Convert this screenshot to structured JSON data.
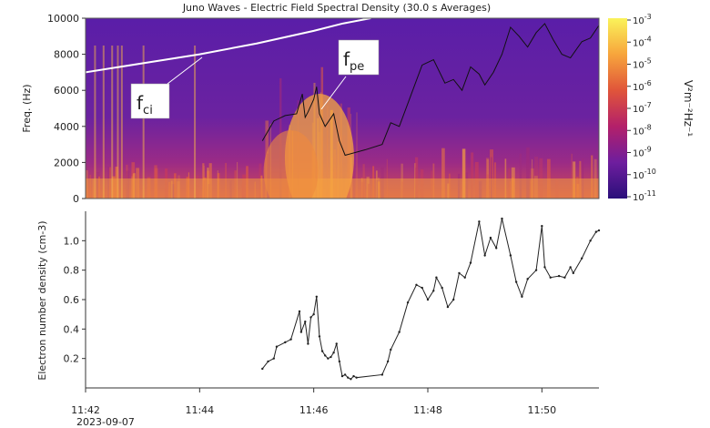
{
  "chart_data": [
    {
      "type": "heatmap",
      "title": "Juno Waves - Electric Field Spectral Density (30.0 s Averages)",
      "ylabel": "Freq. (Hz)",
      "ylim": [
        0,
        10000
      ],
      "yticks": [
        "0",
        "2000",
        "4000",
        "6000",
        "8000",
        "10000"
      ],
      "xlim_minutes": [
        0,
        9
      ],
      "colorbar": {
        "label": "V²m⁻²Hz⁻¹",
        "ticks": [
          "10-3",
          "10-4",
          "10-5",
          "10-6",
          "10-7",
          "10-8",
          "10-9",
          "10-10",
          "10-11"
        ],
        "scale": "log",
        "colors": [
          "#faf35a",
          "#f7a53c",
          "#e0553a",
          "#b3206a",
          "#6e1e9e",
          "#2a0f7a"
        ]
      },
      "annotations": [
        {
          "label": "f",
          "sub": "ci"
        },
        {
          "label": "f",
          "sub": "pe"
        }
      ],
      "series": [
        {
          "type": "line",
          "color": "#ffffff",
          "x": [
            0.0,
            1.0,
            2.0,
            3.0,
            4.0,
            4.5,
            5.0
          ],
          "y": [
            7000,
            7500,
            8000,
            8600,
            9300,
            9700,
            10000
          ]
        },
        {
          "type": "line",
          "color": "#111111",
          "x": [
            3.1,
            3.3,
            3.5,
            3.7,
            3.8,
            3.85,
            3.9,
            4.0,
            4.05,
            4.1,
            4.2,
            4.35,
            4.45,
            4.55,
            4.9,
            5.2,
            5.35,
            5.5,
            5.7,
            5.9,
            6.1,
            6.3,
            6.45,
            6.6,
            6.75,
            6.9,
            7.0,
            7.15,
            7.3,
            7.45,
            7.6,
            7.75,
            7.9,
            8.05,
            8.2,
            8.35,
            8.5,
            8.7,
            8.85,
            9.0
          ],
          "y": [
            3200,
            4300,
            4600,
            4700,
            5800,
            4500,
            4800,
            5500,
            6200,
            4700,
            4000,
            4700,
            3200,
            2400,
            2700,
            3000,
            4200,
            4000,
            5700,
            7400,
            7700,
            6400,
            6600,
            6000,
            7300,
            6900,
            6300,
            7000,
            8000,
            9500,
            9000,
            8400,
            9200,
            9700,
            8800,
            8000,
            7800,
            8700,
            8900,
            9600
          ]
        }
      ]
    },
    {
      "type": "line",
      "ylabel": "Electron number density (cm-3)",
      "xlabel_date": "2023-09-07",
      "xlim_minutes": [
        0,
        9
      ],
      "ylim": [
        0,
        1.2
      ],
      "yticks": [
        "0.2",
        "0.4",
        "0.6",
        "0.8",
        "1.0"
      ],
      "xticks": [
        "11:42",
        "11:44",
        "11:46",
        "11:48",
        "11:50"
      ],
      "series": [
        {
          "x": [
            3.1,
            3.2,
            3.3,
            3.35,
            3.5,
            3.6,
            3.75,
            3.78,
            3.85,
            3.9,
            3.95,
            4.0,
            4.05,
            4.1,
            4.15,
            4.2,
            4.25,
            4.3,
            4.35,
            4.4,
            4.45,
            4.5,
            4.55,
            4.6,
            4.65,
            4.7,
            4.75,
            5.2,
            5.3,
            5.35,
            5.5,
            5.65,
            5.8,
            5.9,
            6.0,
            6.1,
            6.15,
            6.25,
            6.35,
            6.45,
            6.55,
            6.65,
            6.75,
            6.9,
            7.0,
            7.1,
            7.2,
            7.3,
            7.45,
            7.55,
            7.65,
            7.75,
            7.9,
            8.0,
            8.05,
            8.15,
            8.3,
            8.4,
            8.5,
            8.55,
            8.7,
            8.85,
            8.95,
            9.0
          ],
          "y": [
            0.13,
            0.18,
            0.2,
            0.28,
            0.31,
            0.33,
            0.52,
            0.38,
            0.45,
            0.3,
            0.48,
            0.5,
            0.62,
            0.35,
            0.25,
            0.22,
            0.2,
            0.21,
            0.24,
            0.3,
            0.18,
            0.08,
            0.09,
            0.07,
            0.06,
            0.08,
            0.07,
            0.09,
            0.18,
            0.26,
            0.38,
            0.58,
            0.7,
            0.68,
            0.6,
            0.66,
            0.75,
            0.68,
            0.55,
            0.6,
            0.78,
            0.75,
            0.85,
            1.13,
            0.9,
            1.02,
            0.95,
            1.15,
            0.9,
            0.72,
            0.62,
            0.74,
            0.8,
            1.1,
            0.82,
            0.75,
            0.76,
            0.75,
            0.82,
            0.78,
            0.88,
            1.0,
            1.06,
            1.07
          ]
        }
      ]
    }
  ]
}
